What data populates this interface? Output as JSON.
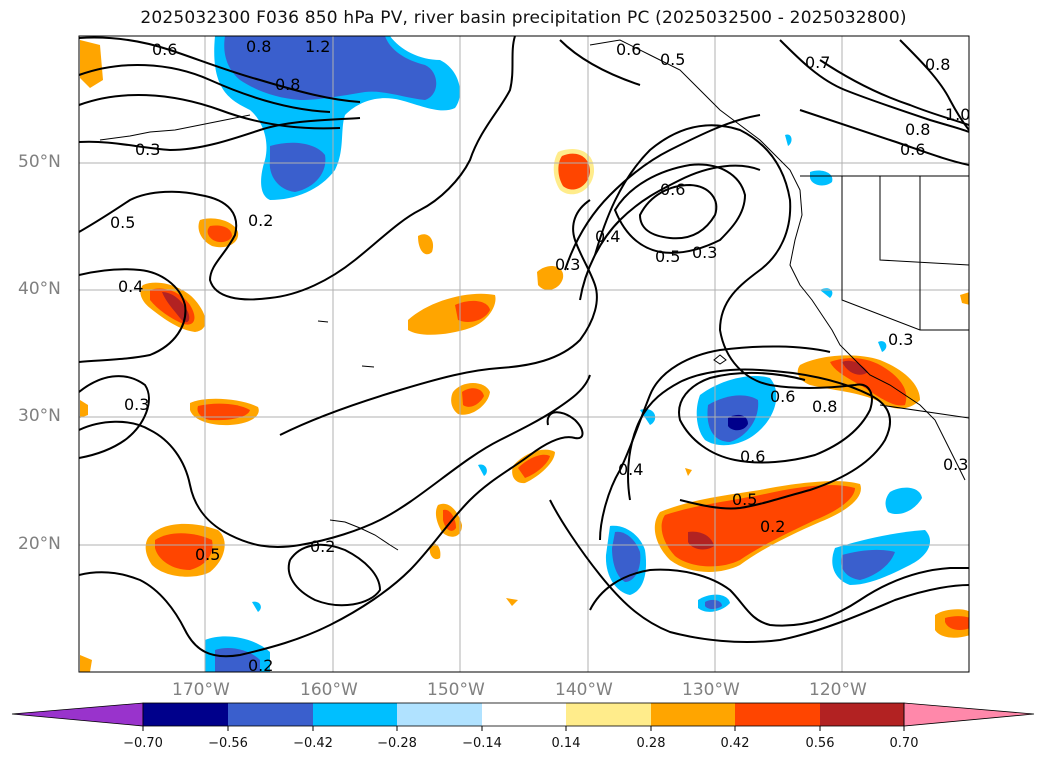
{
  "title": "2025032300 F036 850 hPa PV, river basin precipitation PC (2025032500 - 2025032800)",
  "lat_labels": [
    "50°N",
    "40°N",
    "30°N",
    "20°N"
  ],
  "lon_labels": [
    "170°W",
    "160°W",
    "150°W",
    "140°W",
    "130°W",
    "120°W"
  ],
  "contour_labels": [
    "0.6",
    "0.8",
    "1.2",
    "0.8",
    "0.6",
    "0.5",
    "0.7",
    "0.8",
    "1.0",
    "0.8",
    "0.6",
    "0.3",
    "0.2",
    "0.5",
    "0.4",
    "0.3",
    "0.4",
    "0.3",
    "0.5",
    "0.6",
    "0.3",
    "0.6",
    "0.5",
    "0.4",
    "0.6",
    "0.8",
    "0.3",
    "0.3",
    "0.5",
    "0.2",
    "0.2",
    "0.2"
  ],
  "colorbar": {
    "ticks": [
      "−0.70",
      "−0.56",
      "−0.42",
      "−0.28",
      "−0.14",
      "0.14",
      "0.28",
      "0.42",
      "0.56",
      "0.70"
    ],
    "colors": [
      "#9933cc",
      "#00008b",
      "#3a5fcd",
      "#00bfff",
      "#b0e2ff",
      "#ffffff",
      "#ffec8b",
      "#ffa500",
      "#ff4500",
      "#b22222",
      "#ff88aa"
    ]
  },
  "colors": {
    "blue_dark": "#00008b",
    "blue_mid": "#3a5fcd",
    "blue": "#00bfff",
    "blue_light": "#b0e2ff",
    "yellow": "#ffec8b",
    "orange": "#ffa500",
    "red_orange": "#ff4500",
    "dark_red": "#b22222"
  }
}
